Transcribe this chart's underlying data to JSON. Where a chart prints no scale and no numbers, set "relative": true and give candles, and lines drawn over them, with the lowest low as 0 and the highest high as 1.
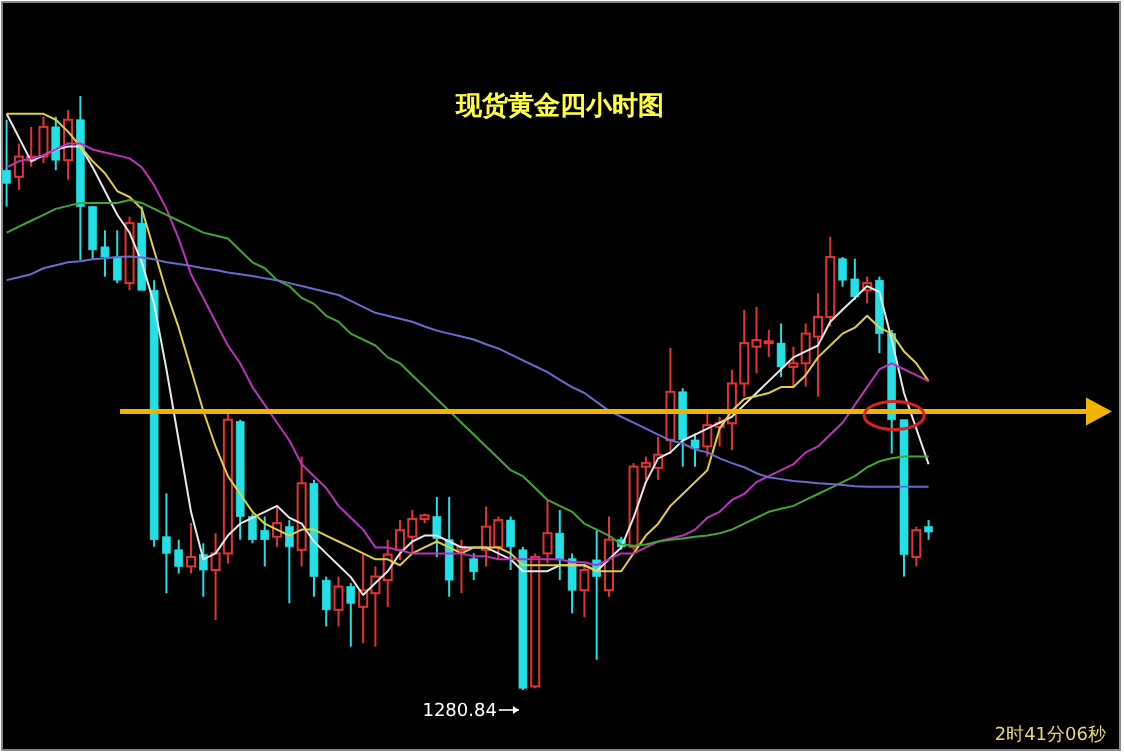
{
  "chart_data": {
    "type": "candlestick",
    "title": "现货黄金四小时图",
    "relative": true,
    "categories": [
      null,
      null,
      null,
      null,
      null,
      null,
      null,
      null,
      null,
      null,
      null,
      null,
      null,
      null,
      null,
      null,
      null,
      null,
      null,
      null,
      null,
      null,
      null,
      null,
      null,
      null,
      null,
      null,
      null,
      null,
      null,
      null,
      null,
      null,
      null,
      null,
      null,
      null,
      null,
      null,
      null,
      null,
      null,
      null,
      null,
      null,
      null,
      null,
      null,
      null,
      null,
      null,
      null,
      null,
      null,
      null,
      null,
      null,
      null,
      null,
      null,
      null,
      null,
      null,
      null,
      null,
      null,
      null,
      null,
      null,
      null,
      null,
      null,
      null,
      null,
      null
    ],
    "ohlc": [
      [
        0.875,
        0.96,
        0.814,
        0.853
      ],
      [
        0.864,
        0.92,
        0.842,
        0.898
      ],
      [
        0.892,
        0.948,
        0.881,
        0.898
      ],
      [
        0.898,
        0.965,
        0.887,
        0.948
      ],
      [
        0.948,
        0.965,
        0.875,
        0.892
      ],
      [
        0.892,
        0.976,
        0.859,
        0.96
      ],
      [
        0.96,
        1.0,
        0.724,
        0.814
      ],
      [
        0.814,
        0.814,
        0.724,
        0.741
      ],
      [
        0.746,
        0.774,
        0.696,
        0.729
      ],
      [
        0.729,
        0.774,
        0.685,
        0.69
      ],
      [
        0.685,
        0.797,
        0.673,
        0.786
      ],
      [
        0.786,
        0.814,
        0.673,
        0.673
      ],
      [
        0.673,
        0.69,
        0.241,
        0.253
      ],
      [
        0.258,
        0.331,
        0.163,
        0.23
      ],
      [
        0.236,
        0.253,
        0.196,
        0.208
      ],
      [
        0.208,
        0.281,
        0.196,
        0.224
      ],
      [
        0.228,
        0.247,
        0.157,
        0.202
      ],
      [
        0.202,
        0.264,
        0.118,
        0.23
      ],
      [
        0.23,
        0.471,
        0.213,
        0.455
      ],
      [
        0.452,
        0.455,
        0.253,
        0.292
      ],
      [
        0.292,
        0.297,
        0.247,
        0.253
      ],
      [
        0.269,
        0.292,
        0.208,
        0.253
      ],
      [
        0.258,
        0.309,
        0.241,
        0.281
      ],
      [
        0.275,
        0.286,
        0.146,
        0.241
      ],
      [
        0.236,
        0.393,
        0.208,
        0.348
      ],
      [
        0.348,
        0.354,
        0.157,
        0.191
      ],
      [
        0.185,
        0.191,
        0.107,
        0.135
      ],
      [
        0.135,
        0.191,
        0.107,
        0.174
      ],
      [
        0.174,
        0.18,
        0.073,
        0.146
      ],
      [
        0.14,
        0.23,
        0.079,
        0.168
      ],
      [
        0.163,
        0.208,
        0.073,
        0.191
      ],
      [
        0.185,
        0.253,
        0.14,
        0.228
      ],
      [
        0.236,
        0.286,
        0.219,
        0.269
      ],
      [
        0.258,
        0.303,
        0.23,
        0.288
      ],
      [
        0.288,
        0.297,
        0.281,
        0.294
      ],
      [
        0.292,
        0.325,
        0.224,
        0.255
      ],
      [
        0.253,
        0.325,
        0.157,
        0.185
      ],
      [
        0.236,
        0.253,
        0.163,
        0.241
      ],
      [
        0.221,
        0.23,
        0.185,
        0.199
      ],
      [
        0.236,
        0.309,
        0.208,
        0.275
      ],
      [
        0.241,
        0.292,
        0.219,
        0.286
      ],
      [
        0.286,
        0.292,
        0.202,
        0.241
      ],
      [
        0.236,
        0.241,
        0,
        0.003
      ],
      [
        0.006,
        0.23,
        0.003,
        0.224
      ],
      [
        0.23,
        0.32,
        0.213,
        0.264
      ],
      [
        0.264,
        0.303,
        0.185,
        0.219
      ],
      [
        0.221,
        0.23,
        0.129,
        0.168
      ],
      [
        0.168,
        0.213,
        0.123,
        0.202
      ],
      [
        0.219,
        0.269,
        0.051,
        0.191
      ],
      [
        0.168,
        0.292,
        0.157,
        0.253
      ],
      [
        0.253,
        0.258,
        0.236,
        0.241
      ],
      [
        0.241,
        0.382,
        0.236,
        0.376
      ],
      [
        0.376,
        0.393,
        0.354,
        0.382
      ],
      [
        0.374,
        0.426,
        0.354,
        0.396
      ],
      [
        0.421,
        0.576,
        0.398,
        0.502
      ],
      [
        0.502,
        0.508,
        0.376,
        0.421
      ],
      [
        0.421,
        0.432,
        0.376,
        0.407
      ],
      [
        0.41,
        0.466,
        0.393,
        0.446
      ],
      [
        0.443,
        0.46,
        0.41,
        0.449
      ],
      [
        0.449,
        0.539,
        0.404,
        0.516
      ],
      [
        0.516,
        0.64,
        0.494,
        0.584
      ],
      [
        0.578,
        0.645,
        0.533,
        0.589
      ],
      [
        0.584,
        0.606,
        0.561,
        0.587
      ],
      [
        0.584,
        0.617,
        0.527,
        0.544
      ],
      [
        0.544,
        0.578,
        0.511,
        0.55
      ],
      [
        0.55,
        0.617,
        0.511,
        0.6
      ],
      [
        0.595,
        0.668,
        0.494,
        0.628
      ],
      [
        0.628,
        0.763,
        0.612,
        0.729
      ],
      [
        0.726,
        0.729,
        0.679,
        0.69
      ],
      [
        0.692,
        0.726,
        0.657,
        0.662
      ],
      [
        0.673,
        0.696,
        0.651,
        0.685
      ],
      [
        0.69,
        0.696,
        0.567,
        0.6
      ],
      [
        0.6,
        0.606,
        0.398,
        0.455
      ],
      [
        0.455,
        0.455,
        0.191,
        0.228
      ],
      [
        0.224,
        0.275,
        0.208,
        0.269
      ],
      [
        0.275,
        0.286,
        0.253,
        0.266
      ]
    ],
    "colors": [
      "#22e0e6",
      "#e63232",
      "#e63232",
      "#e63232",
      "#22e0e6",
      "#e63232",
      "#22e0e6",
      "#22e0e6",
      "#22e0e6",
      "#22e0e6",
      "#e63232",
      "#22e0e6",
      "#22e0e6",
      "#22e0e6",
      "#22e0e6",
      "#e63232",
      "#22e0e6",
      "#e63232",
      "#e63232",
      "#22e0e6",
      "#22e0e6",
      "#22e0e6",
      "#e63232",
      "#22e0e6",
      "#e63232",
      "#22e0e6",
      "#22e0e6",
      "#e63232",
      "#22e0e6",
      "#e63232",
      "#e63232",
      "#e63232",
      "#e63232",
      "#e63232",
      "#e63232",
      "#22e0e6",
      "#22e0e6",
      "#e63232",
      "#22e0e6",
      "#e63232",
      "#e63232",
      "#22e0e6",
      "#22e0e6",
      "#e63232",
      "#e63232",
      "#22e0e6",
      "#22e0e6",
      "#e63232",
      "#22e0e6",
      "#e63232",
      "#22e0e6",
      "#e63232",
      "#e63232",
      "#e63232",
      "#e63232",
      "#22e0e6",
      "#22e0e6",
      "#e63232",
      "#e63232",
      "#e63232",
      "#e63232",
      "#e63232",
      "#e63232",
      "#22e0e6",
      "#e63232",
      "#e63232",
      "#e63232",
      "#e63232",
      "#22e0e6",
      "#22e0e6",
      "#e63232",
      "#22e0e6",
      "#22e0e6",
      "#22e0e6",
      "#e63232",
      "#22e0e6"
    ],
    "series": [
      {
        "type": "line",
        "color": "#e8e8e8",
        "values": [
          0.97,
          0.93,
          0.89,
          0.9,
          0.91,
          0.915,
          0.915,
          0.88,
          0.84,
          0.8,
          0.77,
          0.72,
          0.65,
          0.54,
          0.42,
          0.3,
          0.22,
          0.23,
          0.26,
          0.28,
          0.29,
          0.3,
          0.31,
          0.29,
          0.28,
          0.25,
          0.23,
          0.21,
          0.19,
          0.16,
          0.18,
          0.2,
          0.23,
          0.25,
          0.26,
          0.26,
          0.25,
          0.24,
          0.24,
          0.24,
          0.23,
          0.22,
          0.2,
          0.2,
          0.2,
          0.21,
          0.21,
          0.21,
          0.2,
          0.22,
          0.24,
          0.29,
          0.35,
          0.39,
          0.4,
          0.42,
          0.43,
          0.44,
          0.45,
          0.46,
          0.48,
          0.5,
          0.52,
          0.54,
          0.56,
          0.57,
          0.58,
          0.62,
          0.64,
          0.66,
          0.68,
          0.67,
          0.59,
          0.5,
          0.44,
          0.38
        ]
      },
      {
        "type": "line",
        "color": "#e0d040",
        "values": [
          0.97,
          0.97,
          0.97,
          0.97,
          0.96,
          0.94,
          0.915,
          0.89,
          0.87,
          0.84,
          0.83,
          0.81,
          0.74,
          0.67,
          0.61,
          0.54,
          0.47,
          0.41,
          0.36,
          0.33,
          0.3,
          0.28,
          0.27,
          0.26,
          0.27,
          0.27,
          0.26,
          0.25,
          0.24,
          0.23,
          0.22,
          0.22,
          0.21,
          0.23,
          0.24,
          0.25,
          0.24,
          0.23,
          0.24,
          0.24,
          0.24,
          0.23,
          0.21,
          0.21,
          0.21,
          0.21,
          0.21,
          0.21,
          0.2,
          0.2,
          0.2,
          0.23,
          0.26,
          0.28,
          0.31,
          0.33,
          0.35,
          0.37,
          0.44,
          0.47,
          0.49,
          0.495,
          0.5,
          0.51,
          0.51,
          0.53,
          0.56,
          0.58,
          0.6,
          0.61,
          0.63,
          0.61,
          0.6,
          0.57,
          0.55,
          0.52
        ]
      },
      {
        "type": "line",
        "color": "#c030c0",
        "values": [
          0.88,
          0.89,
          0.895,
          0.9,
          0.91,
          0.92,
          0.92,
          0.91,
          0.905,
          0.9,
          0.895,
          0.88,
          0.85,
          0.81,
          0.76,
          0.7,
          0.66,
          0.62,
          0.58,
          0.55,
          0.51,
          0.48,
          0.45,
          0.42,
          0.38,
          0.36,
          0.34,
          0.31,
          0.29,
          0.27,
          0.24,
          0.24,
          0.235,
          0.23,
          0.23,
          0.23,
          0.23,
          0.23,
          0.225,
          0.225,
          0.22,
          0.22,
          0.22,
          0.22,
          0.22,
          0.22,
          0.215,
          0.215,
          0.21,
          0.22,
          0.23,
          0.23,
          0.24,
          0.25,
          0.255,
          0.26,
          0.27,
          0.29,
          0.3,
          0.32,
          0.33,
          0.35,
          0.36,
          0.37,
          0.38,
          0.4,
          0.41,
          0.43,
          0.45,
          0.48,
          0.51,
          0.54,
          0.55,
          0.54,
          0.53,
          0.52
        ]
      },
      {
        "type": "line",
        "color": "#40a830",
        "values": [
          0.77,
          0.78,
          0.79,
          0.8,
          0.81,
          0.815,
          0.82,
          0.82,
          0.82,
          0.82,
          0.825,
          0.82,
          0.81,
          0.8,
          0.79,
          0.78,
          0.77,
          0.765,
          0.76,
          0.74,
          0.72,
          0.71,
          0.69,
          0.68,
          0.66,
          0.65,
          0.63,
          0.62,
          0.6,
          0.59,
          0.58,
          0.56,
          0.55,
          0.53,
          0.51,
          0.49,
          0.47,
          0.45,
          0.43,
          0.41,
          0.39,
          0.37,
          0.36,
          0.34,
          0.32,
          0.31,
          0.3,
          0.28,
          0.27,
          0.26,
          0.245,
          0.243,
          0.245,
          0.25,
          0.253,
          0.255,
          0.258,
          0.26,
          0.264,
          0.27,
          0.28,
          0.29,
          0.3,
          0.305,
          0.31,
          0.32,
          0.33,
          0.34,
          0.35,
          0.36,
          0.375,
          0.385,
          0.39,
          0.393,
          0.393,
          0.393
        ]
      },
      {
        "type": "line",
        "color": "#6a6ad0",
        "values": [
          0.69,
          0.695,
          0.7,
          0.71,
          0.715,
          0.72,
          0.722,
          0.725,
          0.727,
          0.729,
          0.73,
          0.728,
          0.725,
          0.72,
          0.717,
          0.714,
          0.71,
          0.707,
          0.703,
          0.7,
          0.697,
          0.693,
          0.69,
          0.685,
          0.68,
          0.675,
          0.67,
          0.665,
          0.655,
          0.645,
          0.635,
          0.63,
          0.625,
          0.62,
          0.612,
          0.605,
          0.6,
          0.595,
          0.59,
          0.582,
          0.575,
          0.565,
          0.555,
          0.545,
          0.535,
          0.522,
          0.51,
          0.5,
          0.485,
          0.47,
          0.46,
          0.45,
          0.44,
          0.43,
          0.42,
          0.415,
          0.405,
          0.4,
          0.39,
          0.382,
          0.375,
          0.365,
          0.358,
          0.355,
          0.352,
          0.35,
          0.348,
          0.347,
          0.345,
          0.343,
          0.342,
          0.342,
          0.342,
          0.342,
          0.342,
          0.342
        ]
      }
    ],
    "ref_lines": [
      {
        "axis": "y",
        "value": 0.469,
        "color": "#f0b400"
      }
    ],
    "annotations": [
      "1280.84",
      "2时41分06秒"
    ]
  }
}
